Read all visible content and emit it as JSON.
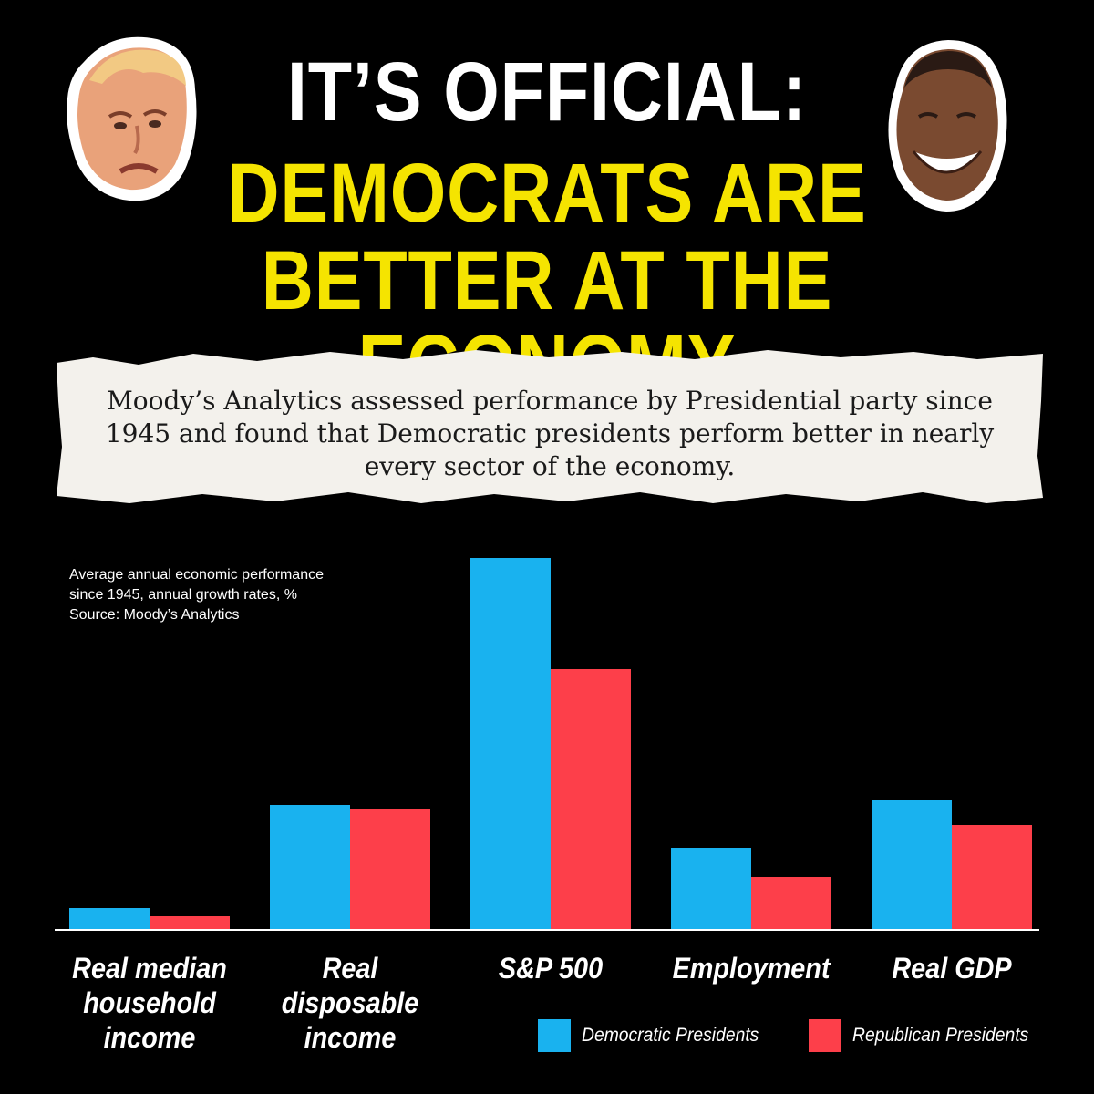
{
  "headline": {
    "line1": "IT’S OFFICIAL:",
    "line2": "DEMOCRATS ARE",
    "line3": "BETTER AT THE ECONOMY"
  },
  "caption": "Moody’s Analytics assessed performance by Presidential party since 1945 and found that Democratic presidents perform better in nearly every sector of the economy.",
  "note": {
    "line1": "Average annual economic performance",
    "line2": "since 1945, annual growth rates, %",
    "line3": "Source: Moody’s Analytics"
  },
  "colors": {
    "background": "#000000",
    "headline_white": "#ffffff",
    "headline_yellow": "#f5e400",
    "democratic": "#19b2ef",
    "republican": "#fd3f4a"
  },
  "chart_data": {
    "type": "bar",
    "categories": [
      "Real median household income",
      "Real disposable income",
      "S&P 500",
      "Employment",
      "Real GDP"
    ],
    "category_lines": [
      [
        "Real median",
        "household",
        "income"
      ],
      [
        "Real",
        "disposable",
        "income"
      ],
      [
        "S&P 500"
      ],
      [
        "Employment"
      ],
      [
        "Real GDP"
      ]
    ],
    "series": [
      {
        "name": "Democratic Presidents",
        "color": "#19b2ef",
        "values": [
          0.24,
          1.37,
          4.08,
          0.9,
          1.42
        ]
      },
      {
        "name": "Republican Presidents",
        "color": "#fd3f4a",
        "values": [
          0.15,
          1.33,
          2.86,
          0.58,
          1.15
        ]
      }
    ],
    "ylim": [
      0,
      4.08
    ],
    "grid": false,
    "legend_position": "bottom-right"
  }
}
